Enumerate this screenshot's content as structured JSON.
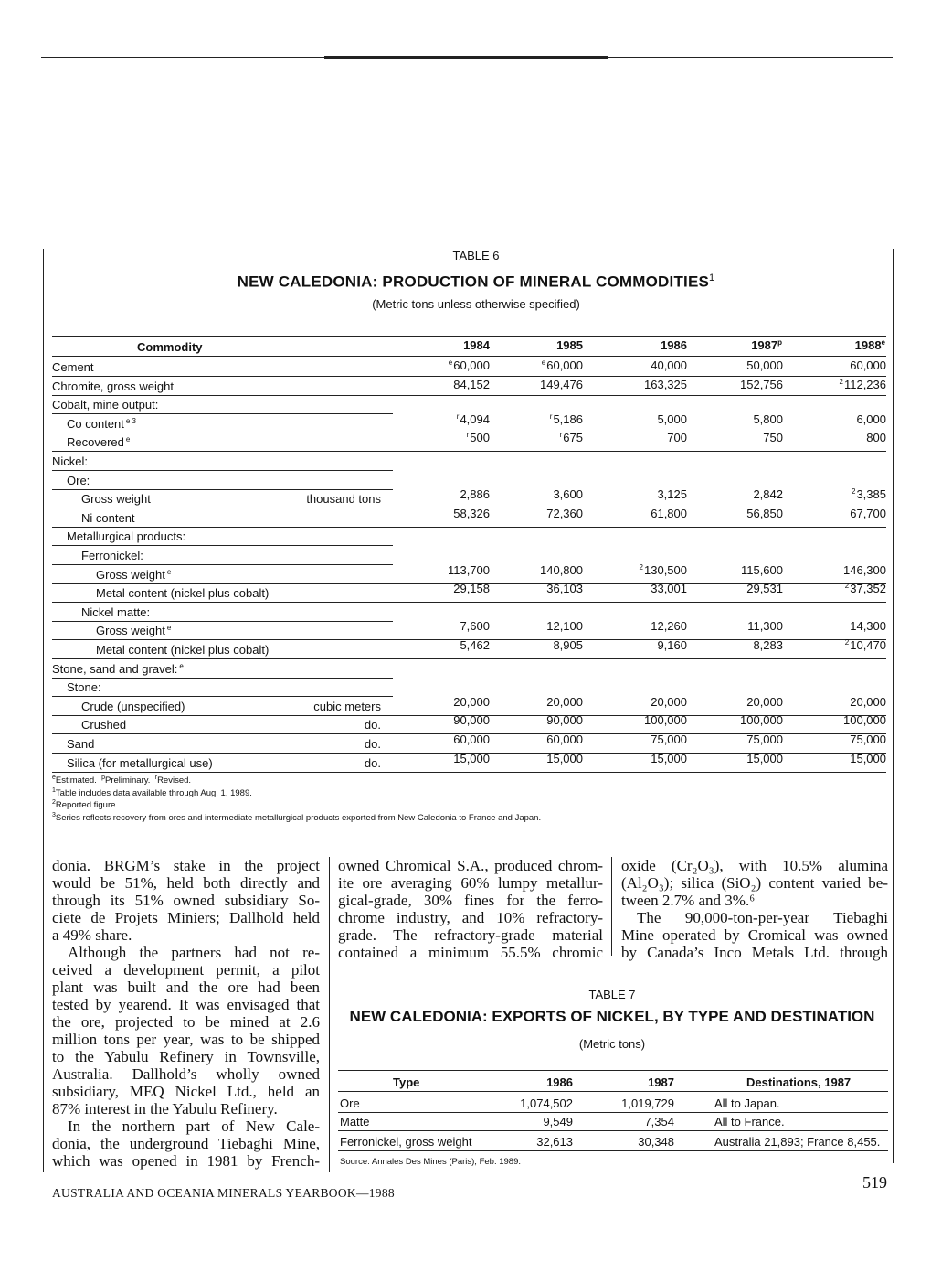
{
  "table6": {
    "caption": "TABLE 6",
    "title": "NEW CALEDONIA: PRODUCTION OF MINERAL COMMODITIES",
    "title_sup": "1",
    "subtitle": "(Metric tons unless otherwise specified)",
    "headers": [
      {
        "text": "Commodity",
        "sup": ""
      },
      {
        "text": "1984",
        "sup": ""
      },
      {
        "text": "1985",
        "sup": ""
      },
      {
        "text": "1986",
        "sup": ""
      },
      {
        "text": "1987",
        "sup": "p"
      },
      {
        "text": "1988",
        "sup": "e"
      }
    ],
    "rows": [
      {
        "label": "Cement",
        "sup": "",
        "level": 0,
        "unit": "",
        "values": [
          {
            "sup": "e",
            "v": "60,000"
          },
          {
            "sup": "e",
            "v": "60,000"
          },
          {
            "sup": "",
            "v": "40,000"
          },
          {
            "sup": "",
            "v": "50,000"
          },
          {
            "sup": "",
            "v": "60,000"
          }
        ]
      },
      {
        "label": "Chromite, gross weight",
        "sup": "",
        "level": 0,
        "unit": "",
        "values": [
          {
            "sup": "",
            "v": "84,152"
          },
          {
            "sup": "",
            "v": "149,476"
          },
          {
            "sup": "",
            "v": "163,325"
          },
          {
            "sup": "",
            "v": "152,756"
          },
          {
            "sup": "2",
            "v": "112,236"
          }
        ]
      },
      {
        "label": "Cobalt, mine output:",
        "sup": "",
        "level": 0,
        "unit": "",
        "values": []
      },
      {
        "label": "Co content",
        "sup": "e 3",
        "level": 1,
        "unit": "",
        "values": [
          {
            "sup": "r",
            "v": "4,094"
          },
          {
            "sup": "r",
            "v": "5,186"
          },
          {
            "sup": "",
            "v": "5,000"
          },
          {
            "sup": "",
            "v": "5,800"
          },
          {
            "sup": "",
            "v": "6,000"
          }
        ]
      },
      {
        "label": "Recovered",
        "sup": "e",
        "level": 1,
        "unit": "",
        "values": [
          {
            "sup": "r",
            "v": "500"
          },
          {
            "sup": "r",
            "v": "675"
          },
          {
            "sup": "",
            "v": "700"
          },
          {
            "sup": "",
            "v": "750"
          },
          {
            "sup": "",
            "v": "800"
          }
        ]
      },
      {
        "label": "Nickel:",
        "sup": "",
        "level": 0,
        "unit": "",
        "values": []
      },
      {
        "label": "Ore:",
        "sup": "",
        "level": 1,
        "unit": "",
        "values": []
      },
      {
        "label": "Gross weight",
        "sup": "",
        "level": 2,
        "unit": "thousand tons",
        "values": [
          {
            "sup": "",
            "v": "2,886"
          },
          {
            "sup": "",
            "v": "3,600"
          },
          {
            "sup": "",
            "v": "3,125"
          },
          {
            "sup": "",
            "v": "2,842"
          },
          {
            "sup": "2",
            "v": "3,385"
          }
        ]
      },
      {
        "label": "Ni content",
        "sup": "",
        "level": 2,
        "unit": "",
        "values": [
          {
            "sup": "",
            "v": "58,326"
          },
          {
            "sup": "",
            "v": "72,360"
          },
          {
            "sup": "",
            "v": "61,800"
          },
          {
            "sup": "",
            "v": "56,850"
          },
          {
            "sup": "",
            "v": "67,700"
          }
        ]
      },
      {
        "label": "Metallurgical products:",
        "sup": "",
        "level": 1,
        "unit": "",
        "values": []
      },
      {
        "label": "Ferronickel:",
        "sup": "",
        "level": 2,
        "unit": "",
        "values": []
      },
      {
        "label": "Gross weight",
        "sup": "e",
        "level": 3,
        "unit": "",
        "values": [
          {
            "sup": "",
            "v": "113,700"
          },
          {
            "sup": "",
            "v": "140,800"
          },
          {
            "sup": "2",
            "v": "130,500"
          },
          {
            "sup": "",
            "v": "115,600"
          },
          {
            "sup": "",
            "v": "146,300"
          }
        ]
      },
      {
        "label": "Metal content (nickel plus cobalt)",
        "sup": "",
        "level": 3,
        "unit": "",
        "values": [
          {
            "sup": "",
            "v": "29,158"
          },
          {
            "sup": "",
            "v": "36,103"
          },
          {
            "sup": "",
            "v": "33,001"
          },
          {
            "sup": "",
            "v": "29,531"
          },
          {
            "sup": "2",
            "v": "37,352"
          }
        ]
      },
      {
        "label": "Nickel matte:",
        "sup": "",
        "level": 2,
        "unit": "",
        "values": []
      },
      {
        "label": "Gross weight",
        "sup": "e",
        "level": 3,
        "unit": "",
        "values": [
          {
            "sup": "",
            "v": "7,600"
          },
          {
            "sup": "",
            "v": "12,100"
          },
          {
            "sup": "",
            "v": "12,260"
          },
          {
            "sup": "",
            "v": "11,300"
          },
          {
            "sup": "",
            "v": "14,300"
          }
        ]
      },
      {
        "label": "Metal content (nickel plus cobalt)",
        "sup": "",
        "level": 3,
        "unit": "",
        "values": [
          {
            "sup": "",
            "v": "5,462"
          },
          {
            "sup": "",
            "v": "8,905"
          },
          {
            "sup": "",
            "v": "9,160"
          },
          {
            "sup": "",
            "v": "8,283"
          },
          {
            "sup": "2",
            "v": "10,470"
          }
        ]
      },
      {
        "label": "Stone, sand and gravel:",
        "sup": "e",
        "level": 0,
        "unit": "",
        "values": []
      },
      {
        "label": "Stone:",
        "sup": "",
        "level": 1,
        "unit": "",
        "values": []
      },
      {
        "label": "Crude (unspecified)",
        "sup": "",
        "level": 2,
        "unit": "cubic meters",
        "values": [
          {
            "sup": "",
            "v": "20,000"
          },
          {
            "sup": "",
            "v": "20,000"
          },
          {
            "sup": "",
            "v": "20,000"
          },
          {
            "sup": "",
            "v": "20,000"
          },
          {
            "sup": "",
            "v": "20,000"
          }
        ]
      },
      {
        "label": "Crushed",
        "sup": "",
        "level": 2,
        "unit": "do.",
        "values": [
          {
            "sup": "",
            "v": "90,000"
          },
          {
            "sup": "",
            "v": "90,000"
          },
          {
            "sup": "",
            "v": "100,000"
          },
          {
            "sup": "",
            "v": "100,000"
          },
          {
            "sup": "",
            "v": "100,000"
          }
        ]
      },
      {
        "label": "Sand",
        "sup": "",
        "level": 1,
        "unit": "do.",
        "values": [
          {
            "sup": "",
            "v": "60,000"
          },
          {
            "sup": "",
            "v": "60,000"
          },
          {
            "sup": "",
            "v": "75,000"
          },
          {
            "sup": "",
            "v": "75,000"
          },
          {
            "sup": "",
            "v": "75,000"
          }
        ]
      },
      {
        "label": "Silica (for metallurgical use)",
        "sup": "",
        "level": 1,
        "unit": "do.",
        "values": [
          {
            "sup": "",
            "v": "15,000"
          },
          {
            "sup": "",
            "v": "15,000"
          },
          {
            "sup": "",
            "v": "15,000"
          },
          {
            "sup": "",
            "v": "15,000"
          },
          {
            "sup": "",
            "v": "15,000"
          }
        ]
      }
    ],
    "footnotes": [
      {
        "parts": [
          {
            "sup": "e",
            "text": "Estimated.  "
          },
          {
            "sup": "p",
            "text": "Preliminary.  "
          },
          {
            "sup": "r",
            "text": "Revised."
          }
        ]
      },
      {
        "parts": [
          {
            "sup": "1",
            "text": "Table includes data available through Aug. 1, 1989."
          }
        ]
      },
      {
        "parts": [
          {
            "sup": "2",
            "text": "Reported figure."
          }
        ]
      },
      {
        "parts": [
          {
            "sup": "3",
            "text": "Series reflects recovery from ores and intermediate metallurgical products exported from New Caledonia to France and Japan."
          }
        ]
      }
    ]
  },
  "body_text": {
    "column1": [
      {
        "text": "donia. BRGM’s stake in the project",
        "indent": false,
        "last": false
      },
      {
        "text": "would be 51%, held both directly and",
        "indent": false,
        "last": false
      },
      {
        "text": "through its 51% owned subsidiary So-",
        "indent": false,
        "last": false
      },
      {
        "text": "ciete de Projets Miniers; Dallhold held",
        "indent": false,
        "last": false
      },
      {
        "text": "a 49% share.",
        "indent": false,
        "last": true
      },
      {
        "text": "Although the partners had not re-",
        "indent": true,
        "last": false
      },
      {
        "text": "ceived a development permit, a pilot",
        "indent": false,
        "last": false
      },
      {
        "text": "plant was built and the ore had been",
        "indent": false,
        "last": false
      },
      {
        "text": "tested by yearend. It was envisaged that",
        "indent": false,
        "last": false
      },
      {
        "text": "the ore, projected to be mined at 2.6",
        "indent": false,
        "last": false
      },
      {
        "text": "million tons per year, was to be shipped",
        "indent": false,
        "last": false
      },
      {
        "text": "to the Yabulu Refinery in Townsville,",
        "indent": false,
        "last": false
      },
      {
        "text": "Australia. Dallhold’s wholly owned",
        "indent": false,
        "last": false
      },
      {
        "text": "subsidiary, MEQ Nickel Ltd., held an",
        "indent": false,
        "last": false
      },
      {
        "text": "87% interest in the Yabulu Refinery.",
        "indent": false,
        "last": true
      },
      {
        "text": "In the northern part of New Cale-",
        "indent": true,
        "last": false
      },
      {
        "text": "donia, the underground Tiebaghi Mine,",
        "indent": false,
        "last": false
      },
      {
        "text": "which was opened in 1981 by French-",
        "indent": false,
        "last": false
      }
    ],
    "column2": [
      {
        "text": "owned Chromical S.A., produced chrom-",
        "indent": false,
        "last": false
      },
      {
        "text": "ite ore averaging 60% lumpy metallur-",
        "indent": false,
        "last": false
      },
      {
        "text": "gical-grade, 30% fines for the ferro-",
        "indent": false,
        "last": false
      },
      {
        "text": "chrome industry, and 10% refractory-",
        "indent": false,
        "last": false
      },
      {
        "text": "grade. The refractory-grade material",
        "indent": false,
        "last": false
      },
      {
        "text": "contained a minimum 55.5% chromic",
        "indent": false,
        "last": false
      }
    ],
    "column3": [
      {
        "text": "oxide (Cr₂O₃), with 10.5% alumina",
        "indent": false,
        "last": false
      },
      {
        "text": "(Al₂O₃); silica (SiO₂) content varied be-",
        "indent": false,
        "last": false
      },
      {
        "text": "tween 2.7% and 3%.⁶",
        "indent": false,
        "last": true
      },
      {
        "text": "The 90,000-ton-per-year Tiebaghi",
        "indent": true,
        "last": false
      },
      {
        "text": "Mine operated by Cromical was owned",
        "indent": false,
        "last": false
      },
      {
        "text": "by Canada’s Inco Metals Ltd. through",
        "indent": false,
        "last": false
      }
    ]
  },
  "table7": {
    "caption": "TABLE 7",
    "title": "NEW CALEDONIA: EXPORTS OF NICKEL, BY TYPE AND DESTINATION",
    "subtitle": "(Metric tons)",
    "headers": [
      "Type",
      "1986",
      "1987",
      "Destinations, 1987"
    ],
    "rows": [
      [
        "Ore",
        "1,074,502",
        "1,019,729",
        "All to Japan."
      ],
      [
        "Matte",
        "9,549",
        "7,354",
        "All to France."
      ],
      [
        "Ferronickel, gross weight",
        "32,613",
        "30,348",
        "Australia 21,893; France 8,455."
      ]
    ],
    "source": "Source: Annales Des Mines (Paris), Feb. 1989."
  },
  "footer": {
    "running_title": "AUSTRALIA AND OCEANIA MINERALS YEARBOOK—1988",
    "page_number": "519"
  }
}
